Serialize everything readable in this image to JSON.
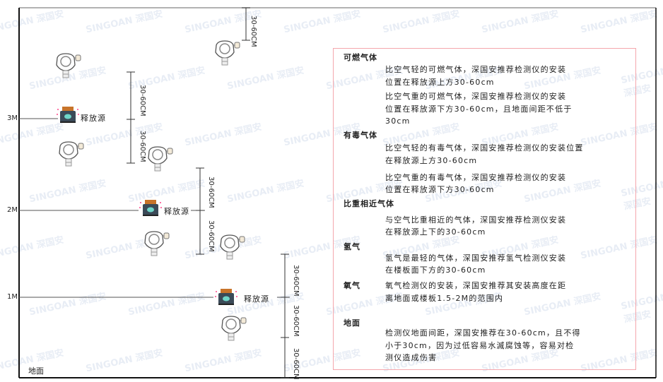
{
  "watermark": "SINGOAN 深国安",
  "levels": {
    "m3": "3M",
    "m2": "2M",
    "m1": "1M",
    "ground": "地面"
  },
  "source_label": "释放源",
  "dimension_label": "30-60CM",
  "colors": {
    "frame": "#111111",
    "box_border": "#f4a7ad",
    "source_body": "#3b4a58",
    "source_cap": "#c8742a",
    "source_face": "#6fd6c9"
  },
  "notes": [
    {
      "heading": "可燃气体",
      "paragraphs": [
        [
          "比空气轻的可燃气体，深国安推荐检测仪的安装",
          "位置在释放源上方30-60cm"
        ],
        [
          "比空气重的可燃气体，深国安推荐检测仪的安装",
          "位置在释放源下方30-60cm，且地面间距不低于",
          "30cm"
        ]
      ]
    },
    {
      "heading": "有毒气体",
      "paragraphs": [
        [
          "比空气轻的有毒气体，深国安推荐检测仪的安装位置",
          "在释放源上方30-60cm"
        ],
        [
          "比空气重的有毒气体，深国安推荐检测仪的安装",
          "位置在释放源下方30-60cm"
        ]
      ]
    },
    {
      "heading": "比重相近气体",
      "paragraphs": [
        [
          "与空气比重相近的气体，深国安推荐检测仪安装",
          "在释放源上下的30-60cm"
        ]
      ]
    },
    {
      "heading": "氢气",
      "paragraphs": [
        [
          "氢气是最轻的气体，深国安推荐氢气检测仪安装",
          "在楼板面下方的30-60cm"
        ]
      ]
    },
    {
      "heading": "氧气",
      "paragraphs": [
        [
          "氧气检测仪的安装，深国安推荐其安装高度在距",
          "离地面或楼板1.5-2M的范围内"
        ]
      ]
    },
    {
      "heading": "地面",
      "paragraphs": [
        [
          "检测仪地面间距，深国安推荐在30-60cm，且不得",
          "小于30cm，因为过低容易水滅腐蚀等，容易对检",
          "测仪造成伤害"
        ]
      ]
    }
  ]
}
